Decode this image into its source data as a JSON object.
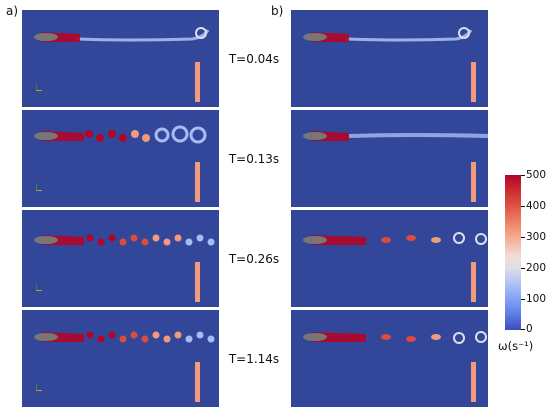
{
  "figure": {
    "panel_a_label": "a)",
    "panel_b_label": "b)",
    "time_labels": [
      "T=0.04s",
      "T=0.13s",
      "T=0.26s",
      "T=1.14s"
    ],
    "colorbar": {
      "ticks": [
        "500",
        "400",
        "300",
        "200",
        "100",
        "0"
      ],
      "values": [
        500,
        400,
        300,
        200,
        100,
        0
      ],
      "label": "ω(s⁻¹)",
      "min": 0,
      "max": 500,
      "colormap": "cool-warm (blue to red)"
    },
    "colors": {
      "background_field": "#33479a",
      "vortex_high": "#b40426",
      "vortex_mid": "#f39a7c",
      "wake_low": "#a7bcf5",
      "body": "#777777"
    }
  }
}
